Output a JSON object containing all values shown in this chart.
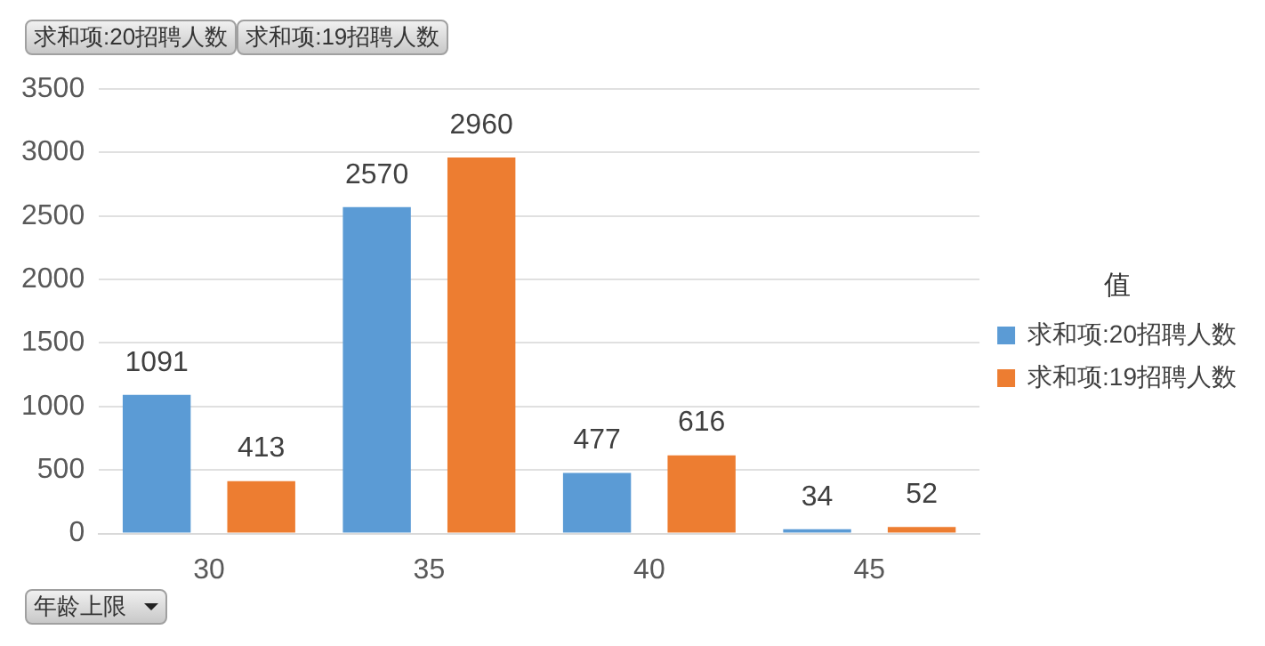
{
  "chart_data": {
    "type": "bar",
    "xlabel": "年龄上限",
    "legend_title": "值",
    "annotations": [
      "求和项:20招聘人数",
      "求和项:19招聘人数"
    ],
    "categories": [
      "30",
      "35",
      "40",
      "45"
    ],
    "series": [
      {
        "name": "求和项:20招聘人数",
        "color": "#5b9bd5",
        "values": [
          1091,
          2570,
          477,
          34
        ]
      },
      {
        "name": "求和项:19招聘人数",
        "color": "#ed7d31",
        "values": [
          413,
          2960,
          616,
          52
        ]
      }
    ],
    "ylim": [
      0,
      3500
    ],
    "yticks": [
      0,
      500,
      1000,
      1500,
      2000,
      2500,
      3000,
      3500
    ],
    "grid": "y",
    "legend": "right",
    "data_labels": true
  }
}
